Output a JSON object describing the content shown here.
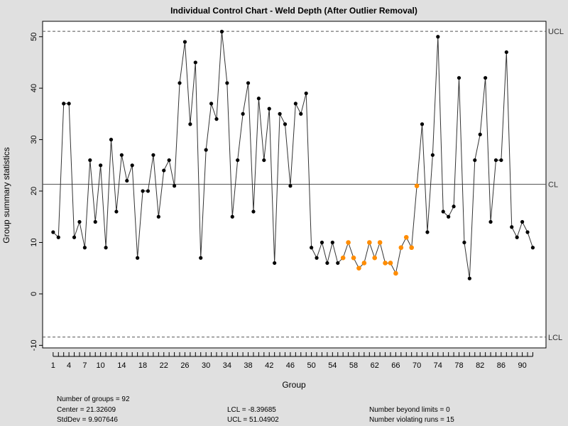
{
  "chart_data": {
    "type": "line",
    "title": "Individual Control Chart - Weld Depth (After Outlier Removal)",
    "xlabel": "Group",
    "ylabel": "Group summary statistics",
    "x": [
      1,
      2,
      3,
      4,
      5,
      6,
      7,
      8,
      9,
      10,
      11,
      12,
      13,
      14,
      15,
      16,
      17,
      18,
      19,
      20,
      21,
      22,
      23,
      24,
      25,
      26,
      27,
      28,
      29,
      30,
      31,
      32,
      33,
      34,
      35,
      36,
      37,
      38,
      39,
      40,
      41,
      42,
      43,
      44,
      45,
      46,
      47,
      48,
      49,
      50,
      51,
      52,
      53,
      54,
      55,
      56,
      57,
      58,
      59,
      60,
      61,
      62,
      63,
      64,
      65,
      66,
      67,
      68,
      69,
      70,
      71,
      72,
      73,
      74,
      75,
      76,
      77,
      78,
      79,
      80,
      81,
      82,
      83,
      84,
      85,
      86,
      87,
      88,
      89,
      90,
      91,
      92
    ],
    "values": [
      12,
      11,
      37,
      37,
      11,
      14,
      9,
      26,
      14,
      25,
      9,
      30,
      16,
      27,
      22,
      25,
      7,
      20,
      20,
      27,
      15,
      24,
      26,
      21,
      41,
      49,
      33,
      45,
      7,
      28,
      37,
      34,
      51,
      41,
      15,
      26,
      35,
      41,
      16,
      38,
      26,
      36,
      6,
      35,
      33,
      21,
      37,
      35,
      39,
      9,
      7,
      10,
      6,
      10,
      6,
      7,
      10,
      7,
      5,
      6,
      10,
      7,
      10,
      6,
      6,
      4,
      9,
      11,
      9,
      21,
      33,
      12,
      27,
      50,
      16,
      15,
      17,
      42,
      10,
      3,
      26,
      31,
      42,
      14,
      26,
      26,
      47,
      13,
      11,
      14,
      12,
      9
    ],
    "violating_indices": [
      55,
      56,
      57,
      58,
      59,
      60,
      61,
      62,
      63,
      64,
      65,
      66,
      67,
      68,
      69
    ],
    "x_tick_labels": [
      "1",
      "4",
      "7",
      "10",
      "14",
      "18",
      "22",
      "26",
      "30",
      "34",
      "38",
      "42",
      "46",
      "50",
      "54",
      "58",
      "62",
      "66",
      "70",
      "74",
      "78",
      "82",
      "86",
      "90"
    ],
    "xlim": [
      -1,
      94.5
    ],
    "ylim": [
      -10.5,
      53
    ],
    "y_ticks": [
      -10,
      0,
      10,
      20,
      30,
      40,
      50
    ],
    "center": 21.32609,
    "ucl": 51.04902,
    "lcl": -8.39685,
    "limit_labels": {
      "ucl": "UCL",
      "cl": "CL",
      "lcl": "LCL"
    },
    "colors": {
      "normal": "#000000",
      "violating": "#ff8c00",
      "line": "#333333",
      "background": "#e0e0e0",
      "plot_bg": "#ffffff"
    }
  },
  "stats": {
    "groups": "Number of groups = 92",
    "center": "Center = 21.32609",
    "stddev": "StdDev = 9.907646",
    "lcl": "LCL = -8.39685",
    "ucl": "UCL = 51.04902",
    "beyond": "Number beyond limits = 0",
    "violating": "Number violating runs = 15"
  }
}
